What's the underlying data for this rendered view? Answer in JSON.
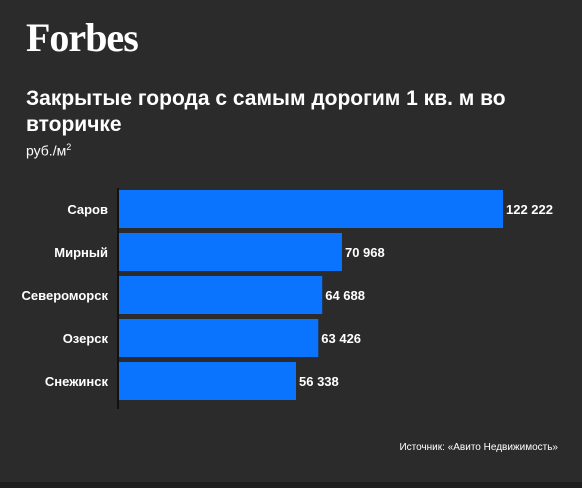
{
  "brand": {
    "logo_text": "Forbes"
  },
  "header": {
    "title": "Закрытые города с самым дорогим 1 кв. м во вторичке",
    "unit_base": "руб./м",
    "unit_sup": "2"
  },
  "footer": {
    "source": "Источник: «Авито Недвижимость»"
  },
  "colors": {
    "background": "#2b2b2b",
    "bar": "#0a74ff",
    "text": "#ffffff"
  },
  "chart_data": {
    "type": "bar",
    "orientation": "horizontal",
    "title": "Закрытые города с самым дорогим 1 кв. м во вторичке",
    "categories": [
      "Саров",
      "Мирный",
      "Североморск",
      "Озерск",
      "Снежинск"
    ],
    "values": [
      122222,
      70968,
      64688,
      63426,
      56338
    ],
    "value_labels": [
      "122 222",
      "70 968",
      "64 688",
      "63 426",
      "56 338"
    ],
    "xlim": [
      0,
      122222
    ],
    "grid": false,
    "legend": "none"
  }
}
